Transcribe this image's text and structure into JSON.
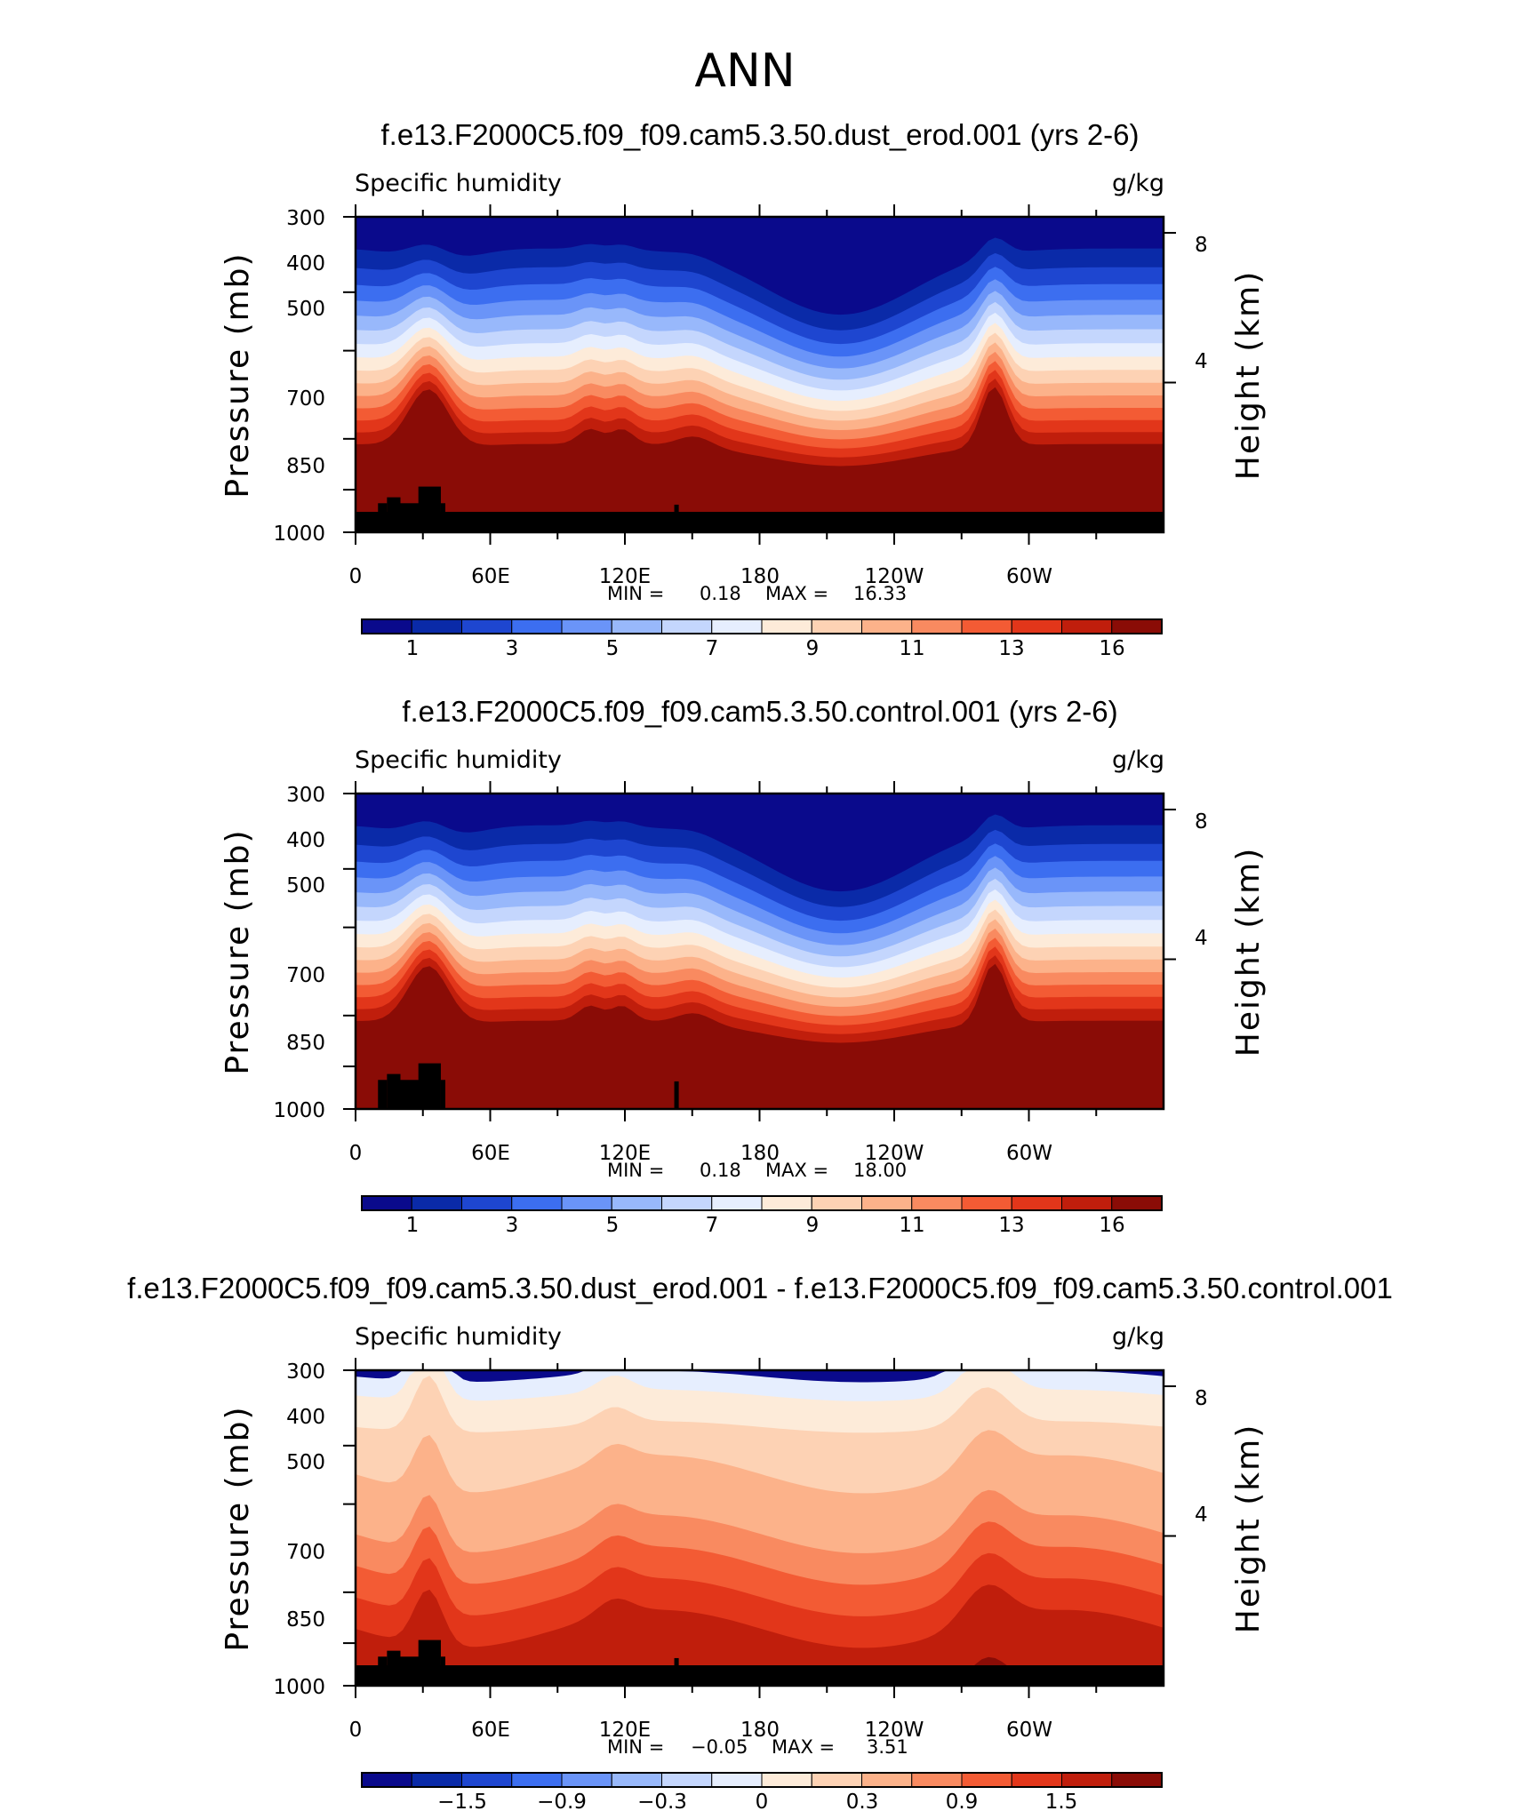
{
  "figure_title": "ANN",
  "colors": {
    "diverging_scale": [
      "#0a0a8c",
      "#0a2aa8",
      "#1e46d0",
      "#3c6ef0",
      "#6a94f8",
      "#98b8fb",
      "#c4d6fd",
      "#e6eefe",
      "#fdebd9",
      "#fdd2b4",
      "#fcb28a",
      "#f98a60",
      "#f35b34",
      "#e2361a",
      "#c01e0c",
      "#8a0c06"
    ],
    "land_mask": "#000000"
  },
  "chart_data": [
    {
      "type": "heatmap",
      "title": "f.e13.F2000C5.f09_f09.cam5.3.50.dust_erod.001 (yrs 2-6)",
      "variable_label": "Specific humidity",
      "units": "g/kg",
      "xlabel": "",
      "ylabel": "Pressure (mb)",
      "ylabel_right": "Height (km)",
      "x_ticks": [
        "0",
        "60E",
        "120E",
        "180",
        "120W",
        "60W"
      ],
      "y_ticks": [
        "300",
        "400",
        "500",
        "700",
        "850",
        "1000"
      ],
      "y_ticks_right": [
        "8",
        "4"
      ],
      "stats": {
        "min_label": "MIN =",
        "min": "0.18",
        "max_label": "MAX =",
        "max": "16.33"
      },
      "colorbar_labels": [
        "1",
        "3",
        "5",
        "7",
        "9",
        "11",
        "13",
        "16"
      ],
      "min_value": 0.18,
      "max_value": 16.33,
      "levels": [
        0.5,
        1,
        2,
        3,
        4,
        5,
        6,
        7,
        8,
        9,
        10,
        11,
        12,
        13,
        14,
        16
      ],
      "land_top_pressure": 925
    },
    {
      "type": "heatmap",
      "title": "f.e13.F2000C5.f09_f09.cam5.3.50.control.001 (yrs 2-6)",
      "variable_label": "Specific humidity",
      "units": "g/kg",
      "xlabel": "",
      "ylabel": "Pressure (mb)",
      "ylabel_right": "Height (km)",
      "x_ticks": [
        "0",
        "60E",
        "120E",
        "180",
        "120W",
        "60W"
      ],
      "y_ticks": [
        "300",
        "400",
        "500",
        "700",
        "850",
        "1000"
      ],
      "y_ticks_right": [
        "8",
        "4"
      ],
      "stats": {
        "min_label": "MIN =",
        "min": "0.18",
        "max_label": "MAX =",
        "max": "18.00"
      },
      "colorbar_labels": [
        "1",
        "3",
        "5",
        "7",
        "9",
        "11",
        "13",
        "16"
      ],
      "min_value": 0.18,
      "max_value": 18.0,
      "levels": [
        0.5,
        1,
        2,
        3,
        4,
        5,
        6,
        7,
        8,
        9,
        10,
        11,
        12,
        13,
        14,
        16
      ],
      "land_top_pressure": 1000
    },
    {
      "type": "heatmap",
      "title": "f.e13.F2000C5.f09_f09.cam5.3.50.dust_erod.001 - f.e13.F2000C5.f09_f09.cam5.3.50.control.001",
      "variable_label": "Specific humidity",
      "units": "g/kg",
      "xlabel": "",
      "ylabel": "Pressure (mb)",
      "ylabel_right": "Height (km)",
      "x_ticks": [
        "0",
        "60E",
        "120E",
        "180",
        "120W",
        "60W"
      ],
      "y_ticks": [
        "300",
        "400",
        "500",
        "700",
        "850",
        "1000"
      ],
      "y_ticks_right": [
        "8",
        "4"
      ],
      "stats": {
        "min_label": "MIN =",
        "min": "−0.05",
        "max_label": "MAX =",
        "max": "3.51"
      },
      "colorbar_labels": [
        "−1.5",
        "−0.9",
        "−0.3",
        "0",
        "0.3",
        "0.9",
        "1.5"
      ],
      "min_value": -0.05,
      "max_value": 3.51,
      "levels": [
        -2.1,
        -1.8,
        -1.5,
        -1.2,
        -0.9,
        -0.6,
        -0.3,
        0,
        0.15,
        0.3,
        0.6,
        0.9,
        1.2,
        1.5,
        1.8,
        2.1
      ],
      "land_top_pressure": 925
    }
  ]
}
